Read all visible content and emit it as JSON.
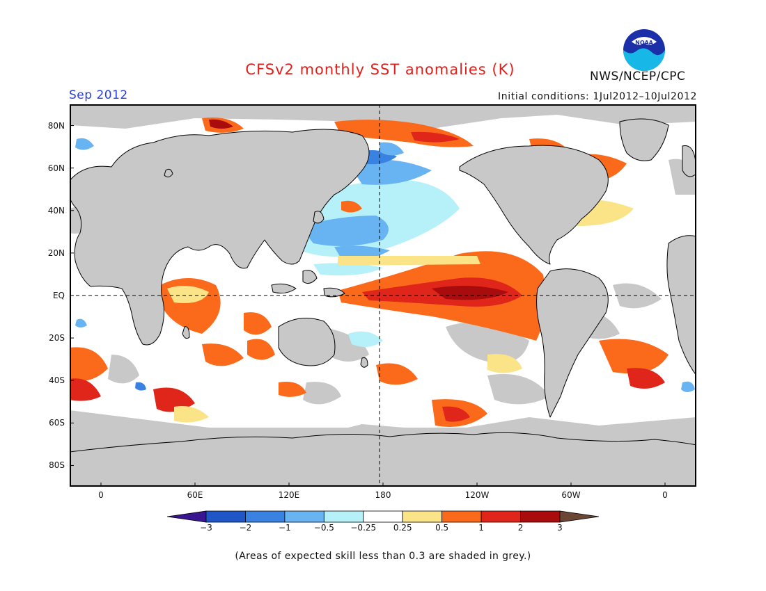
{
  "header": {
    "title": "CFSv2 monthly SST anomalies (K)",
    "month": "Sep 2012",
    "initial_conditions": "Initial conditions: 1Jul2012–10Jul2012",
    "agency": "NWS/NCEP/CPC",
    "logo_text": "NOAA"
  },
  "map": {
    "projection": "equirectangular",
    "lon_range_east": [
      -20,
      380
    ],
    "lat_range": [
      -90,
      90
    ],
    "reference_lines": [
      "EQ",
      "180"
    ],
    "x_ticks": [
      "0",
      "60E",
      "120E",
      "180",
      "120W",
      "60W",
      "0"
    ],
    "y_ticks": [
      "80N",
      "60N",
      "40N",
      "20N",
      "EQ",
      "20S",
      "40S",
      "60S",
      "80S"
    ],
    "colors": {
      "land": "#c8c8c8",
      "low_skill_ocean": "#c8c8c8",
      "neutral_ocean": "#ffffff",
      "coastline": "#000000"
    }
  },
  "colorbar": {
    "labels": [
      "-3",
      "-2",
      "-1",
      "-0.5",
      "-0.25",
      "0.25",
      "0.5",
      "1",
      "2",
      "3"
    ],
    "colors": [
      "#3a1590",
      "#1f57c9",
      "#3a82e2",
      "#68b4f2",
      "#b6f0f8",
      "#ffffff",
      "#fbe488",
      "#fb6a1a",
      "#e0261a",
      "#a80c0c",
      "#6b4635"
    ]
  },
  "footnote": "(Areas of expected skill less than 0.3 are shaded in grey.)"
}
